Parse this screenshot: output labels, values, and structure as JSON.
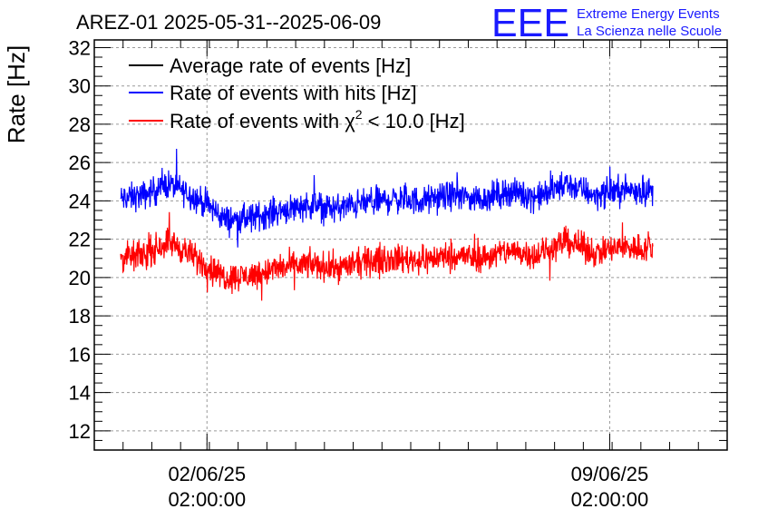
{
  "chart_data": {
    "type": "line",
    "title": "AREZ-01 2025-05-31--2025-06-09",
    "ylabel": "Rate [Hz]",
    "xlabel": "",
    "ylim": [
      11,
      32.4
    ],
    "x_range": [
      "2025-05-31T03:00:00",
      "2025-06-11T03:00:00"
    ],
    "data_range": [
      "2025-05-31T14:00:00",
      "2025-06-09T20:00:00"
    ],
    "yticks": [
      12,
      14,
      16,
      18,
      20,
      22,
      24,
      26,
      28,
      30,
      32
    ],
    "xticks": [
      {
        "t": "2025-06-02T02:00:00",
        "date": "02/06/25",
        "time": "02:00:00"
      },
      {
        "t": "2025-06-09T02:00:00",
        "date": "09/06/25",
        "time": "02:00:00"
      }
    ],
    "grid": true,
    "legend_position": "top-left",
    "noise_amplitude": 1.1,
    "series": [
      {
        "name": "Average rate of events [Hz]",
        "color": "#000000",
        "points": []
      },
      {
        "name": "Rate of events with hits [Hz]",
        "color": "#0000ff",
        "points": [
          [
            "2025-05-31T14:00:00",
            24.1
          ],
          [
            "2025-06-01T00:00:00",
            24.3
          ],
          [
            "2025-06-01T10:00:00",
            24.9
          ],
          [
            "2025-06-01T18:00:00",
            24.4
          ],
          [
            "2025-06-02T02:00:00",
            23.8
          ],
          [
            "2025-06-02T10:00:00",
            23.0
          ],
          [
            "2025-06-02T20:00:00",
            23.1
          ],
          [
            "2025-06-03T08:00:00",
            23.5
          ],
          [
            "2025-06-03T20:00:00",
            23.8
          ],
          [
            "2025-06-04T08:00:00",
            23.6
          ],
          [
            "2025-06-04T20:00:00",
            23.9
          ],
          [
            "2025-06-05T08:00:00",
            24.1
          ],
          [
            "2025-06-05T20:00:00",
            24.0
          ],
          [
            "2025-06-06T08:00:00",
            24.3
          ],
          [
            "2025-06-06T20:00:00",
            24.1
          ],
          [
            "2025-06-07T08:00:00",
            24.5
          ],
          [
            "2025-06-07T20:00:00",
            24.2
          ],
          [
            "2025-06-08T08:00:00",
            24.9
          ],
          [
            "2025-06-08T20:00:00",
            24.3
          ],
          [
            "2025-06-09T08:00:00",
            24.6
          ],
          [
            "2025-06-09T20:00:00",
            24.5
          ]
        ]
      },
      {
        "name": "Rate of events with χ² < 10.0 [Hz]",
        "color": "#ff0000",
        "points": [
          [
            "2025-05-31T14:00:00",
            21.0
          ],
          [
            "2025-06-01T00:00:00",
            21.2
          ],
          [
            "2025-06-01T10:00:00",
            21.9
          ],
          [
            "2025-06-01T18:00:00",
            21.3
          ],
          [
            "2025-06-02T02:00:00",
            20.6
          ],
          [
            "2025-06-02T10:00:00",
            20.0
          ],
          [
            "2025-06-02T20:00:00",
            20.1
          ],
          [
            "2025-06-03T08:00:00",
            20.5
          ],
          [
            "2025-06-03T20:00:00",
            20.7
          ],
          [
            "2025-06-04T08:00:00",
            20.5
          ],
          [
            "2025-06-04T20:00:00",
            20.8
          ],
          [
            "2025-06-05T08:00:00",
            21.0
          ],
          [
            "2025-06-05T20:00:00",
            20.9
          ],
          [
            "2025-06-06T08:00:00",
            21.2
          ],
          [
            "2025-06-06T20:00:00",
            21.0
          ],
          [
            "2025-06-07T08:00:00",
            21.4
          ],
          [
            "2025-06-07T20:00:00",
            21.2
          ],
          [
            "2025-06-08T08:00:00",
            21.9
          ],
          [
            "2025-06-08T20:00:00",
            21.3
          ],
          [
            "2025-06-09T08:00:00",
            21.6
          ],
          [
            "2025-06-09T20:00:00",
            21.5
          ]
        ]
      }
    ]
  },
  "legend": {
    "avg": "Average rate of events [Hz]",
    "hits": "Rate of events with hits [Hz]",
    "chi_prefix": "Rate of events with χ",
    "chi_sup": "2",
    "chi_suffix": " < 10.0 [Hz]"
  },
  "logo": {
    "mark": "EEE",
    "line1": "Extreme Energy Events",
    "line2": "La Scienza nelle Scuole",
    "color": "#1a1aff"
  }
}
